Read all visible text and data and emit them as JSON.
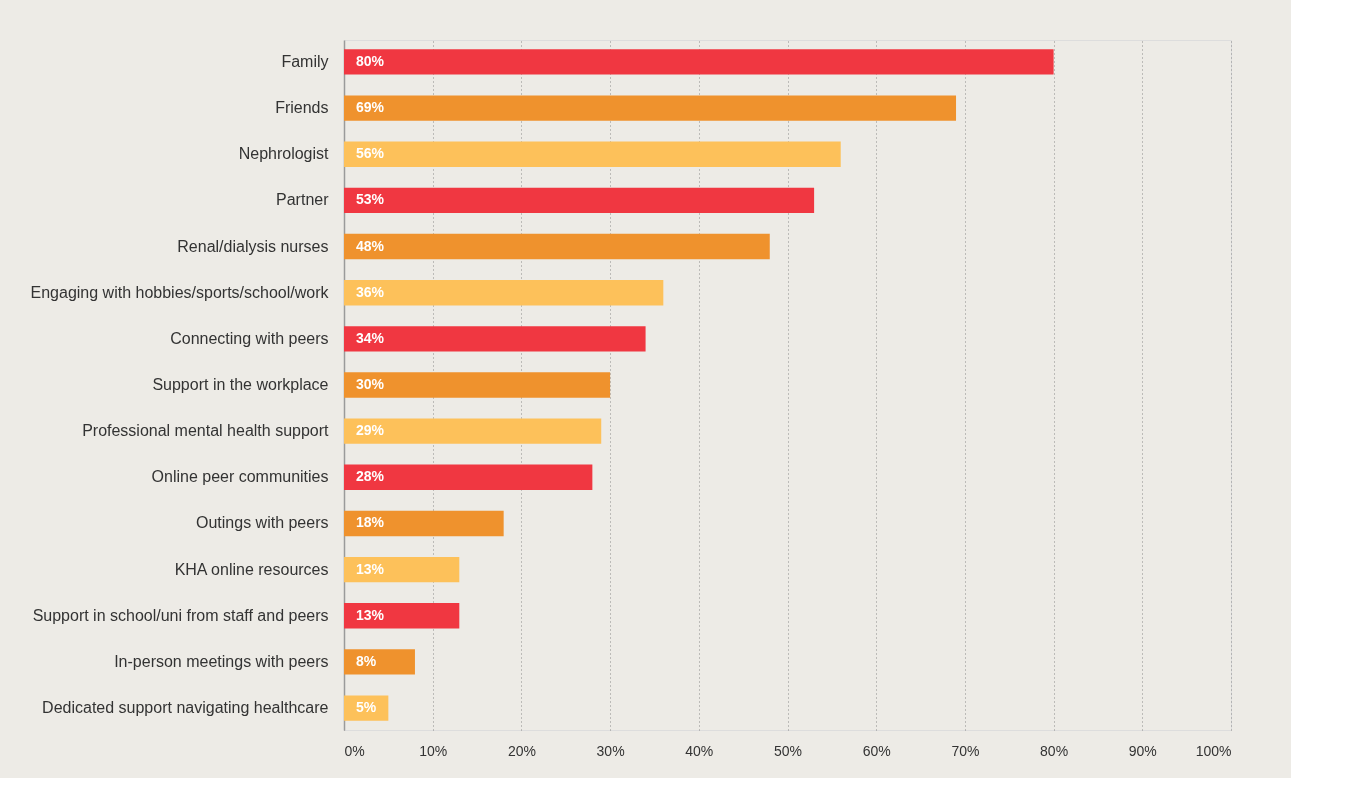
{
  "chart_data": {
    "type": "bar",
    "orientation": "horizontal",
    "categories": [
      "Family",
      "Friends",
      "Nephrologist",
      "Partner",
      "Renal/dialysis nurses",
      "Engaging with hobbies/sports/school/work",
      "Connecting with peers",
      "Support in the workplace",
      "Professional mental health support",
      "Online peer communities",
      "Outings with peers",
      "KHA online resources",
      "Support in school/uni from staff and peers",
      "In-person meetings with peers",
      "Dedicated support navigating healthcare"
    ],
    "values": [
      80,
      69,
      56,
      53,
      48,
      36,
      34,
      30,
      29,
      28,
      18,
      13,
      13,
      8,
      5
    ],
    "value_labels": [
      "80%",
      "69%",
      "56%",
      "53%",
      "48%",
      "36%",
      "34%",
      "30%",
      "29%",
      "28%",
      "18%",
      "13%",
      "13%",
      "8%",
      "5%"
    ],
    "colors": [
      "#f03741",
      "#ef922d",
      "#fdc15a",
      "#f03741",
      "#ef922d",
      "#fdc15a",
      "#f03741",
      "#ef922d",
      "#fdc15a",
      "#f03741",
      "#ef922d",
      "#fdc15a",
      "#f03741",
      "#ef922d",
      "#fdc15a"
    ],
    "xlim": [
      0,
      100
    ],
    "xticks": [
      {
        "value": 0,
        "label": "0%"
      },
      {
        "value": 10,
        "label": "10%"
      },
      {
        "value": 20,
        "label": "20%"
      },
      {
        "value": 30,
        "label": "30%"
      },
      {
        "value": 40,
        "label": "40%"
      },
      {
        "value": 50,
        "label": "50%"
      },
      {
        "value": 60,
        "label": "60%"
      },
      {
        "value": 70,
        "label": "70%"
      },
      {
        "value": 80,
        "label": "80%"
      },
      {
        "value": 90,
        "label": "90%"
      },
      {
        "value": 100,
        "label": "100%"
      }
    ],
    "grid": "x",
    "legend": false
  }
}
